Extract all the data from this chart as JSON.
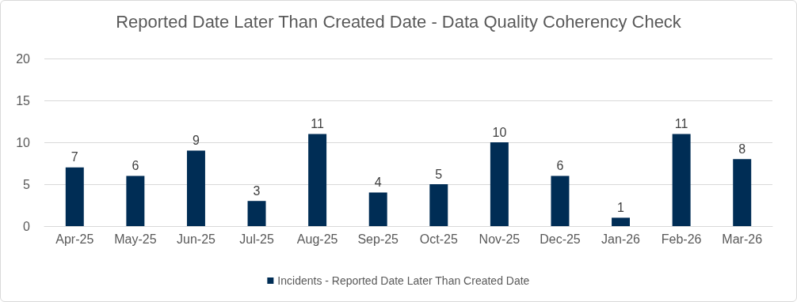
{
  "chart_data": {
    "type": "bar",
    "title": "Reported Date Later Than Created Date - Data Quality Coherency Check",
    "categories": [
      "Apr-25",
      "May-25",
      "Jun-25",
      "Jul-25",
      "Aug-25",
      "Sep-25",
      "Oct-25",
      "Nov-25",
      "Dec-25",
      "Jan-26",
      "Feb-26",
      "Mar-26"
    ],
    "series": [
      {
        "name": "Incidents - Reported Date Later Than Created Date",
        "color": "#002d55",
        "values": [
          7,
          6,
          9,
          3,
          11,
          4,
          5,
          10,
          6,
          1,
          11,
          8
        ]
      }
    ],
    "ylim": [
      0,
      20
    ],
    "yticks": [
      0,
      5,
      10,
      15,
      20
    ],
    "grid": "y",
    "legend": "bottom",
    "data_labels": true
  }
}
